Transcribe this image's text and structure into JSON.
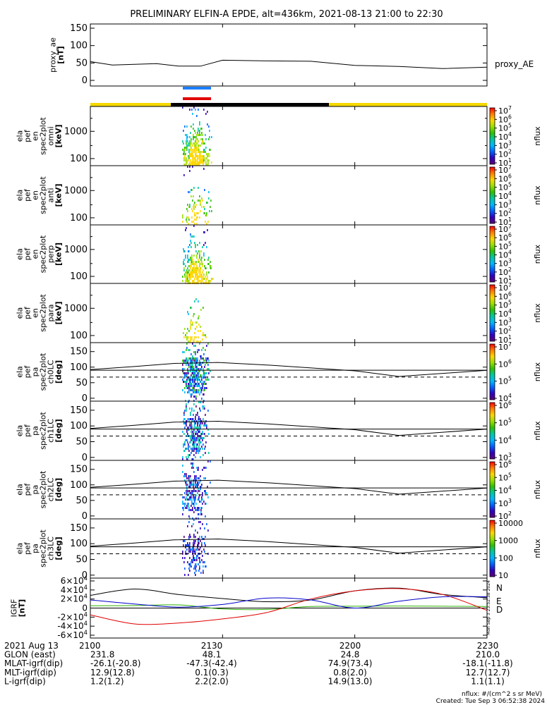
{
  "title": "PRELIMINARY ELFIN-A EPDE, alt=436km, 2021-08-13 21:00 to 22:30",
  "chart_data": [
    {
      "type": "line",
      "panel": "proxy_ae",
      "ylabel_lines": [
        "proxy_ae",
        "[nT]"
      ],
      "legend": "proxy_AE",
      "yticks": [
        "0",
        "50",
        "100",
        "150"
      ],
      "ylim": [
        0,
        160
      ],
      "x_minutes": [
        0,
        5,
        10,
        15,
        20,
        25,
        30,
        40,
        50,
        60,
        70,
        80,
        90
      ],
      "values": [
        54,
        44,
        46,
        48,
        41,
        41,
        58,
        56,
        55,
        43,
        40,
        34,
        38
      ]
    },
    {
      "type": "heatmap",
      "panels": [
        {
          "ylabel_lines": [
            "ela",
            "pef",
            "en",
            "spec2plot",
            "omni",
            "[keV]"
          ],
          "yticks": [
            "100",
            "1000"
          ],
          "cbar_ticks": [
            "10^7",
            "10^6",
            "10^5",
            "10^4",
            "10^3",
            "10^2",
            "10^1"
          ],
          "cbar_label": "nflux"
        },
        {
          "ylabel_lines": [
            "ela",
            "pef",
            "en",
            "spec2plot",
            "anti",
            "[keV]"
          ],
          "yticks": [
            "100",
            "1000"
          ],
          "cbar_ticks": [
            "10^7",
            "10^6",
            "10^5",
            "10^4",
            "10^3",
            "10^2",
            "10^1"
          ],
          "cbar_label": "nflux"
        },
        {
          "ylabel_lines": [
            "ela",
            "pef",
            "en",
            "spec2plot",
            "perp",
            "[keV]"
          ],
          "yticks": [
            "100",
            "1000"
          ],
          "cbar_ticks": [
            "10^7",
            "10^6",
            "10^5",
            "10^4",
            "10^3",
            "10^2",
            "10^1"
          ],
          "cbar_label": "nflux"
        },
        {
          "ylabel_lines": [
            "ela",
            "pef",
            "en",
            "spec2plot",
            "para",
            "[keV]"
          ],
          "yticks": [
            "100",
            "1000"
          ],
          "cbar_ticks": [
            "10^7",
            "10^6",
            "10^5",
            "10^4",
            "10^3",
            "10^2",
            "10^1"
          ],
          "cbar_label": "nflux"
        },
        {
          "ylabel_lines": [
            "ela",
            "pef",
            "pa",
            "spec2plot",
            "ch0LC",
            "[deg]"
          ],
          "yticks": [
            "0",
            "50",
            "100",
            "150"
          ],
          "cbar_ticks": [
            "10^7",
            "10^6",
            "10^5",
            "10^4"
          ],
          "cbar_label": "nflux"
        },
        {
          "ylabel_lines": [
            "ela",
            "pef",
            "pa",
            "spec2plot",
            "ch1LC",
            "[deg]"
          ],
          "yticks": [
            "0",
            "50",
            "100",
            "150"
          ],
          "cbar_ticks": [
            "10^6",
            "10^5",
            "10^4",
            "10^3"
          ],
          "cbar_label": "nflux"
        },
        {
          "ylabel_lines": [
            "ela",
            "pef",
            "pa",
            "spec2plot",
            "ch2LC",
            "[deg]"
          ],
          "yticks": [
            "0",
            "50",
            "100",
            "150"
          ],
          "cbar_ticks": [
            "10^6",
            "10^5",
            "10^4",
            "10^3",
            "10^2"
          ],
          "cbar_label": "nflux"
        },
        {
          "ylabel_lines": [
            "ela",
            "pef",
            "pa",
            "spec2plot",
            "ch3LC",
            "[deg]"
          ],
          "yticks": [
            "0",
            "50",
            "100",
            "150"
          ],
          "cbar_ticks": [
            "10000",
            "1000",
            "100",
            "10"
          ],
          "cbar_label": "nflux"
        }
      ],
      "colorscale": [
        "#ff0000",
        "#ff7f00",
        "#ffd700",
        "#9be000",
        "#2ec000",
        "#00c8a0",
        "#00b8ff",
        "#0060ff",
        "#3000c0",
        "#5a0078"
      ]
    },
    {
      "type": "line",
      "panel": "IGRF",
      "ylabel_lines": [
        "IGRF",
        "[nT]"
      ],
      "yticks": [
        "6×10^4",
        "4×10^4",
        "2×10^4",
        "0",
        "-2×10^4",
        "-4×10^4",
        "-6×10^4"
      ],
      "ylim": [
        -60000,
        60000
      ],
      "series": [
        {
          "name": "N",
          "color": "#000000",
          "x_minutes": [
            0,
            10,
            20,
            30,
            40,
            50,
            60,
            70,
            80,
            90
          ],
          "values": [
            28000,
            42000,
            30000,
            21000,
            14000,
            18000,
            38000,
            44000,
            30000,
            23000
          ]
        },
        {
          "name": "E",
          "color": "#2ab000",
          "x_minutes": [
            0,
            10,
            20,
            30,
            40,
            50,
            60,
            70,
            80,
            90
          ],
          "values": [
            5000,
            5500,
            7000,
            -2000,
            -3000,
            3500,
            4000,
            4500,
            4000,
            3500
          ]
        },
        {
          "name": "D",
          "color": "#e00000",
          "x_minutes": [
            0,
            10,
            20,
            30,
            40,
            50,
            60,
            70,
            80,
            90
          ],
          "values": [
            -15000,
            -35000,
            -33000,
            -24000,
            -10000,
            20000,
            38000,
            43000,
            30000,
            -5000
          ]
        },
        {
          "name": "",
          "color": "#0000cc",
          "x_minutes": [
            0,
            10,
            20,
            30,
            40,
            50,
            60,
            70,
            80,
            90
          ],
          "values": [
            18000,
            9000,
            2000,
            8000,
            22000,
            18000,
            0,
            15000,
            25000,
            25000
          ]
        }
      ],
      "side_label": "Mon Sep  3 23:52:38 2024"
    }
  ],
  "time_axis": {
    "date": "2021 Aug 13",
    "ticks": [
      "2100",
      "2130",
      "2200",
      "2230"
    ]
  },
  "annotation_rows": [
    {
      "label": "GLON (east)",
      "values": [
        "231.8",
        "48.1",
        "24.8",
        "210.0"
      ]
    },
    {
      "label": "MLAT-igrf(dip)",
      "values": [
        "-26.1(-20.8)",
        "-47.3(-42.4)",
        "74.9(73.4)",
        "-18.1(-11.8)"
      ]
    },
    {
      "label": "MLT-igrf(dip)",
      "values": [
        "12.9(12.8)",
        "0.1(0.3)",
        "0.8(2.0)",
        "12.7(12.7)"
      ]
    },
    {
      "label": "L-igrf(dip)",
      "values": [
        "1.2(1.2)",
        "2.2(2.0)",
        "14.9(13.0)",
        "1.1(1.1)"
      ]
    }
  ],
  "footer": {
    "units": "nflux: #/(cm^2 s sr MeV)",
    "created": "Created: Tue Sep  3 06:52:38 2024"
  },
  "colors": {
    "day_bar": "#f5d800",
    "night_bar": "#000000",
    "marker_top": "#1a7fff",
    "marker_bottom": "#e00000"
  }
}
